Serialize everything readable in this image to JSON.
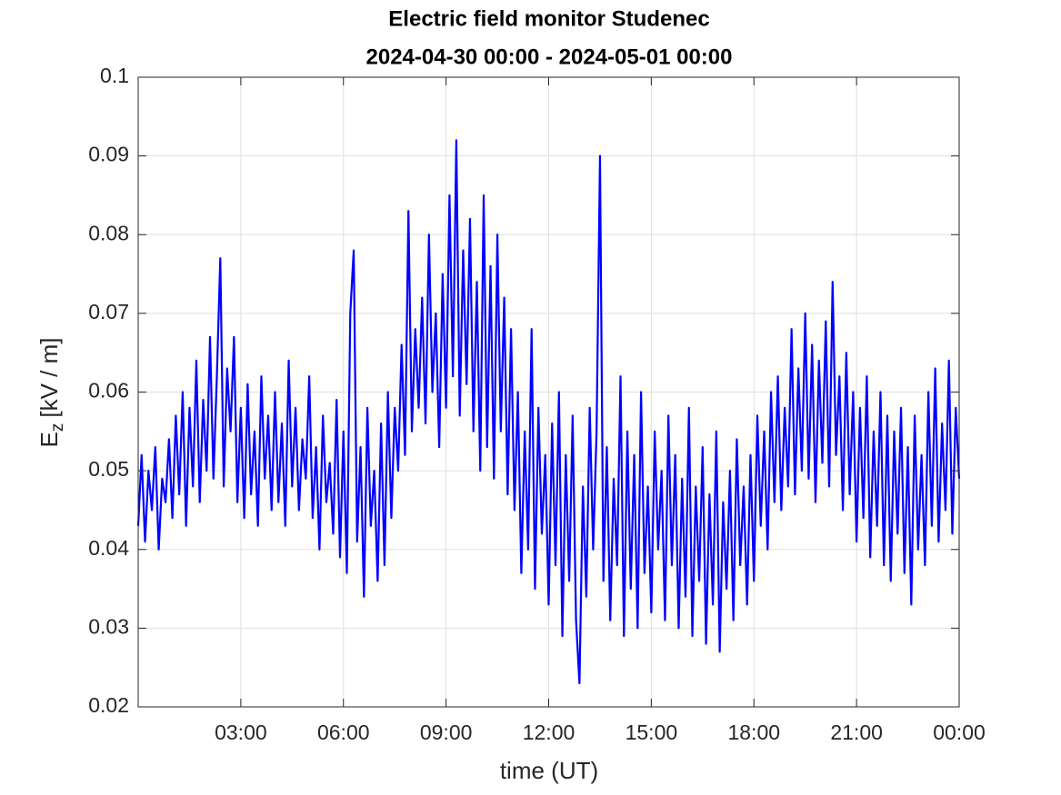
{
  "chart_data": {
    "type": "line",
    "title": [
      "Electric field monitor Studenec",
      "2024-04-30 00:00 - 2024-05-01 00:00"
    ],
    "xlabel": "time (UT)",
    "ylabel": {
      "main": "E",
      "sub": "z",
      "rest": "[kV / m]"
    },
    "xlim": [
      0,
      24
    ],
    "xticks": [
      {
        "value": 3,
        "label": "03:00"
      },
      {
        "value": 6,
        "label": "06:00"
      },
      {
        "value": 9,
        "label": "09:00"
      },
      {
        "value": 12,
        "label": "12:00"
      },
      {
        "value": 15,
        "label": "15:00"
      },
      {
        "value": 18,
        "label": "18:00"
      },
      {
        "value": 21,
        "label": "21:00"
      },
      {
        "value": 24,
        "label": "00:00"
      }
    ],
    "ylim": [
      0.02,
      0.1
    ],
    "yticks": [
      0.02,
      0.03,
      0.04,
      0.05,
      0.06,
      0.07,
      0.08,
      0.09,
      0.1
    ],
    "grid": true,
    "x": [
      0,
      0.1,
      0.2,
      0.3,
      0.4,
      0.5,
      0.6,
      0.7,
      0.8,
      0.9,
      1,
      1.1,
      1.2,
      1.3,
      1.4,
      1.5,
      1.6,
      1.7,
      1.8,
      1.9,
      2,
      2.1,
      2.2,
      2.3,
      2.4,
      2.5,
      2.6,
      2.7,
      2.8,
      2.9,
      3,
      3.1,
      3.2,
      3.3,
      3.4,
      3.5,
      3.6,
      3.7,
      3.8,
      3.9,
      4,
      4.1,
      4.2,
      4.3,
      4.4,
      4.5,
      4.6,
      4.7,
      4.8,
      4.9,
      5,
      5.1,
      5.2,
      5.3,
      5.4,
      5.5,
      5.6,
      5.7,
      5.8,
      5.9,
      6,
      6.1,
      6.2,
      6.3,
      6.4,
      6.5,
      6.6,
      6.7,
      6.8,
      6.9,
      7,
      7.1,
      7.2,
      7.3,
      7.4,
      7.5,
      7.6,
      7.7,
      7.8,
      7.9,
      8,
      8.1,
      8.2,
      8.3,
      8.4,
      8.5,
      8.6,
      8.7,
      8.8,
      8.9,
      9,
      9.1,
      9.2,
      9.3,
      9.4,
      9.5,
      9.6,
      9.7,
      9.8,
      9.9,
      10,
      10.1,
      10.2,
      10.3,
      10.4,
      10.5,
      10.6,
      10.7,
      10.8,
      10.9,
      11,
      11.1,
      11.2,
      11.3,
      11.4,
      11.5,
      11.6,
      11.7,
      11.8,
      11.9,
      12,
      12.1,
      12.2,
      12.3,
      12.4,
      12.5,
      12.6,
      12.7,
      12.8,
      12.9,
      13,
      13.1,
      13.2,
      13.3,
      13.4,
      13.5,
      13.6,
      13.7,
      13.8,
      13.9,
      14,
      14.1,
      14.2,
      14.3,
      14.4,
      14.5,
      14.6,
      14.7,
      14.8,
      14.9,
      15,
      15.1,
      15.2,
      15.3,
      15.4,
      15.5,
      15.6,
      15.7,
      15.8,
      15.9,
      16,
      16.1,
      16.2,
      16.3,
      16.4,
      16.5,
      16.6,
      16.7,
      16.8,
      16.9,
      17,
      17.1,
      17.2,
      17.3,
      17.4,
      17.5,
      17.6,
      17.7,
      17.8,
      17.9,
      18,
      18.1,
      18.2,
      18.3,
      18.4,
      18.5,
      18.6,
      18.7,
      18.8,
      18.9,
      19,
      19.1,
      19.2,
      19.3,
      19.4,
      19.5,
      19.6,
      19.7,
      19.8,
      19.9,
      20,
      20.1,
      20.2,
      20.3,
      20.4,
      20.5,
      20.6,
      20.7,
      20.8,
      20.9,
      21,
      21.1,
      21.2,
      21.3,
      21.4,
      21.5,
      21.6,
      21.7,
      21.8,
      21.9,
      22,
      22.1,
      22.2,
      22.3,
      22.4,
      22.5,
      22.6,
      22.7,
      22.8,
      22.9,
      23,
      23.1,
      23.2,
      23.3,
      23.4,
      23.5,
      23.6,
      23.7,
      23.8,
      23.9,
      24
    ],
    "series": [
      {
        "color": "#0000ff",
        "values": [
          0.043,
          0.052,
          0.041,
          0.05,
          0.045,
          0.053,
          0.04,
          0.049,
          0.046,
          0.054,
          0.044,
          0.057,
          0.047,
          0.06,
          0.043,
          0.058,
          0.048,
          0.064,
          0.046,
          0.059,
          0.05,
          0.067,
          0.049,
          0.062,
          0.077,
          0.048,
          0.063,
          0.055,
          0.067,
          0.046,
          0.058,
          0.044,
          0.061,
          0.047,
          0.055,
          0.043,
          0.062,
          0.049,
          0.057,
          0.045,
          0.06,
          0.046,
          0.056,
          0.043,
          0.064,
          0.048,
          0.058,
          0.045,
          0.054,
          0.049,
          0.062,
          0.044,
          0.053,
          0.04,
          0.057,
          0.046,
          0.051,
          0.042,
          0.059,
          0.039,
          0.055,
          0.037,
          0.07,
          0.078,
          0.041,
          0.053,
          0.034,
          0.058,
          0.043,
          0.05,
          0.036,
          0.056,
          0.038,
          0.06,
          0.044,
          0.058,
          0.05,
          0.066,
          0.052,
          0.083,
          0.055,
          0.068,
          0.058,
          0.072,
          0.056,
          0.08,
          0.06,
          0.07,
          0.053,
          0.075,
          0.058,
          0.085,
          0.062,
          0.092,
          0.057,
          0.078,
          0.061,
          0.082,
          0.055,
          0.074,
          0.05,
          0.085,
          0.053,
          0.076,
          0.049,
          0.08,
          0.055,
          0.072,
          0.047,
          0.068,
          0.045,
          0.06,
          0.037,
          0.055,
          0.04,
          0.068,
          0.035,
          0.058,
          0.042,
          0.052,
          0.033,
          0.056,
          0.038,
          0.06,
          0.029,
          0.052,
          0.036,
          0.057,
          0.031,
          0.023,
          0.048,
          0.034,
          0.058,
          0.04,
          0.055,
          0.09,
          0.036,
          0.053,
          0.031,
          0.049,
          0.038,
          0.062,
          0.029,
          0.055,
          0.035,
          0.052,
          0.03,
          0.06,
          0.037,
          0.048,
          0.032,
          0.055,
          0.04,
          0.05,
          0.031,
          0.057,
          0.038,
          0.052,
          0.03,
          0.049,
          0.034,
          0.058,
          0.029,
          0.048,
          0.036,
          0.053,
          0.028,
          0.047,
          0.033,
          0.055,
          0.027,
          0.046,
          0.035,
          0.05,
          0.031,
          0.054,
          0.038,
          0.048,
          0.033,
          0.052,
          0.036,
          0.057,
          0.043,
          0.055,
          0.04,
          0.06,
          0.046,
          0.062,
          0.045,
          0.058,
          0.048,
          0.068,
          0.047,
          0.063,
          0.05,
          0.07,
          0.049,
          0.066,
          0.046,
          0.064,
          0.051,
          0.069,
          0.048,
          0.074,
          0.052,
          0.062,
          0.045,
          0.065,
          0.047,
          0.06,
          0.041,
          0.058,
          0.044,
          0.062,
          0.039,
          0.055,
          0.043,
          0.06,
          0.038,
          0.057,
          0.036,
          0.055,
          0.042,
          0.058,
          0.037,
          0.053,
          0.033,
          0.057,
          0.04,
          0.052,
          0.038,
          0.06,
          0.043,
          0.063,
          0.041,
          0.056,
          0.045,
          0.064,
          0.042,
          0.058,
          0.049
        ]
      }
    ]
  }
}
